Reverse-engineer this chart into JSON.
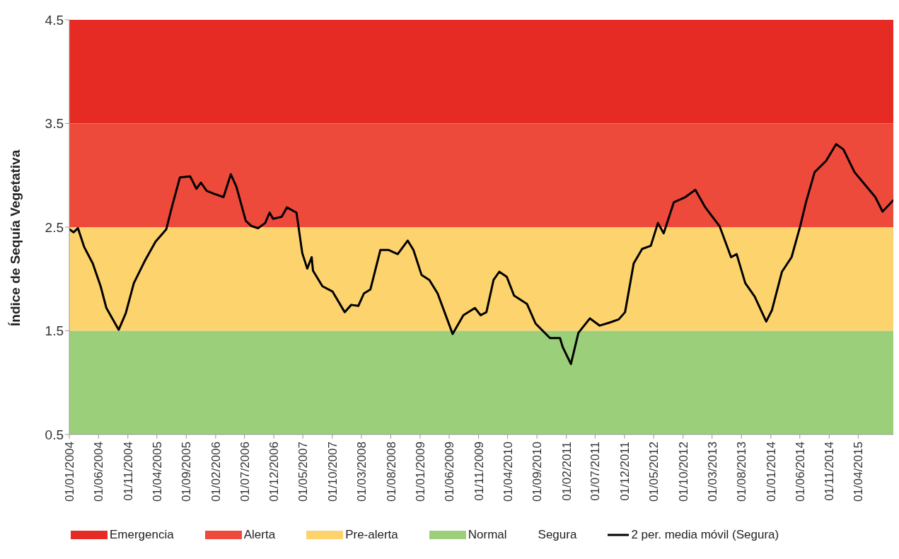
{
  "chart_data": {
    "type": "line",
    "ylabel": "Índice de Sequía Vegetativa",
    "ylim": [
      0.5,
      4.5
    ],
    "yticks": [
      0.5,
      1.5,
      2.5,
      3.5,
      4.5
    ],
    "xlim": [
      "2004-01-01",
      "2015-10-01"
    ],
    "xticks": [
      {
        "value": "2004-01-01",
        "label": "01/01/2004"
      },
      {
        "value": "2004-06-01",
        "label": "01/06/2004"
      },
      {
        "value": "2004-11-01",
        "label": "01/11/2004"
      },
      {
        "value": "2005-04-01",
        "label": "01/04/2005"
      },
      {
        "value": "2005-09-01",
        "label": "01/09/2005"
      },
      {
        "value": "2006-02-01",
        "label": "01/02/2006"
      },
      {
        "value": "2006-07-01",
        "label": "01/07/2006"
      },
      {
        "value": "2006-12-01",
        "label": "01/12/2006"
      },
      {
        "value": "2007-05-01",
        "label": "01/05/2007"
      },
      {
        "value": "2007-10-01",
        "label": "01/10/2007"
      },
      {
        "value": "2008-03-01",
        "label": "01/03/2008"
      },
      {
        "value": "2008-08-01",
        "label": "01/08/2008"
      },
      {
        "value": "2009-01-01",
        "label": "01/01/2009"
      },
      {
        "value": "2009-06-01",
        "label": "01/06/2009"
      },
      {
        "value": "2009-11-01",
        "label": "01/11/2009"
      },
      {
        "value": "2010-04-01",
        "label": "01/04/2010"
      },
      {
        "value": "2010-09-01",
        "label": "01/09/2010"
      },
      {
        "value": "2011-02-01",
        "label": "01/02/2011"
      },
      {
        "value": "2011-07-01",
        "label": "01/07/2011"
      },
      {
        "value": "2011-12-01",
        "label": "01/12/2011"
      },
      {
        "value": "2012-05-01",
        "label": "01/05/2012"
      },
      {
        "value": "2012-10-01",
        "label": "01/10/2012"
      },
      {
        "value": "2013-03-01",
        "label": "01/03/2013"
      },
      {
        "value": "2013-08-01",
        "label": "01/08/2013"
      },
      {
        "value": "2014-01-01",
        "label": "01/01/2014"
      },
      {
        "value": "2014-06-01",
        "label": "01/06/2014"
      },
      {
        "value": "2014-11-01",
        "label": "01/11/2014"
      },
      {
        "value": "2015-04-01",
        "label": "01/04/2015"
      }
    ],
    "bands": [
      {
        "axis": "y",
        "from": 3.5,
        "to": 4.5,
        "label": "Emergencia",
        "color": "#e52b23"
      },
      {
        "axis": "y",
        "from": 2.5,
        "to": 3.5,
        "label": "Alerta",
        "color": "#ee4a3c"
      },
      {
        "axis": "y",
        "from": 1.5,
        "to": 2.5,
        "label": "Pre-alerta",
        "color": "#fdd36e"
      },
      {
        "axis": "y",
        "from": 0.5,
        "to": 1.5,
        "label": "Normal",
        "color": "#9ccf7a"
      }
    ],
    "series": [
      {
        "name": "Segura"
      },
      {
        "name": "2 per. media móvil (Segura)",
        "color": "#000000",
        "x": [
          "2004-01-01",
          "2004-01-23",
          "2004-02-15",
          "2004-03-18",
          "2004-05-02",
          "2004-06-12",
          "2004-07-12",
          "2004-09-14",
          "2004-10-21",
          "2004-12-02",
          "2005-01-27",
          "2005-03-25",
          "2005-05-20",
          "2005-06-19",
          "2005-07-30",
          "2005-09-21",
          "2005-10-24",
          "2005-11-16",
          "2005-12-16",
          "2006-01-26",
          "2006-03-14",
          "2006-04-21",
          "2006-05-20",
          "2006-07-08",
          "2006-08-07",
          "2006-09-10",
          "2006-10-17",
          "2006-11-09",
          "2006-11-27",
          "2007-01-11",
          "2007-02-07",
          "2007-03-29",
          "2007-04-28",
          "2007-05-24",
          "2007-06-16",
          "2007-06-23",
          "2007-08-11",
          "2007-10-02",
          "2007-12-05",
          "2008-01-08",
          "2008-02-14",
          "2008-03-14",
          "2008-04-17",
          "2008-06-08",
          "2008-07-19",
          "2008-09-06",
          "2008-10-28",
          "2008-11-27",
          "2009-01-08",
          "2009-02-18",
          "2009-04-02",
          "2009-06-19",
          "2009-08-14",
          "2009-10-13",
          "2009-11-12",
          "2009-12-12",
          "2010-01-18",
          "2010-02-17",
          "2010-03-28",
          "2010-05-05",
          "2010-07-11",
          "2010-08-25",
          "2010-11-08",
          "2010-12-30",
          "2011-01-14",
          "2011-02-25",
          "2011-04-05",
          "2011-06-04",
          "2011-07-25",
          "2011-09-16",
          "2011-11-01",
          "2011-12-04",
          "2012-01-18",
          "2012-03-02",
          "2012-04-16",
          "2012-05-23",
          "2012-06-22",
          "2012-08-14",
          "2012-10-13",
          "2012-12-04",
          "2013-01-25",
          "2013-04-09",
          "2013-06-08",
          "2013-07-07",
          "2013-08-21",
          "2013-10-09",
          "2013-12-08",
          "2014-01-07",
          "2014-02-28",
          "2014-04-19",
          "2014-06-03",
          "2014-07-03",
          "2014-08-17",
          "2014-10-16",
          "2014-12-07",
          "2015-01-14",
          "2015-03-13",
          "2015-06-29",
          "2015-08-06",
          "2015-10-01"
        ],
        "values": [
          2.48,
          2.45,
          2.49,
          2.31,
          2.15,
          1.93,
          1.72,
          1.51,
          1.67,
          1.96,
          2.17,
          2.36,
          2.48,
          2.7,
          2.98,
          2.99,
          2.87,
          2.93,
          2.85,
          2.82,
          2.79,
          3.01,
          2.89,
          2.56,
          2.51,
          2.49,
          2.54,
          2.64,
          2.58,
          2.6,
          2.69,
          2.64,
          2.25,
          2.1,
          2.21,
          2.08,
          1.93,
          1.88,
          1.68,
          1.75,
          1.74,
          1.86,
          1.9,
          2.28,
          2.28,
          2.24,
          2.37,
          2.28,
          2.04,
          1.99,
          1.86,
          1.47,
          1.65,
          1.72,
          1.65,
          1.68,
          1.99,
          2.07,
          2.02,
          1.84,
          1.76,
          1.57,
          1.43,
          1.43,
          1.34,
          1.18,
          1.48,
          1.62,
          1.55,
          1.58,
          1.61,
          1.68,
          2.15,
          2.29,
          2.32,
          2.54,
          2.44,
          2.74,
          2.79,
          2.86,
          2.69,
          2.51,
          2.21,
          2.24,
          1.96,
          1.83,
          1.59,
          1.7,
          2.07,
          2.21,
          2.51,
          2.74,
          3.03,
          3.14,
          3.3,
          3.25,
          3.03,
          2.79,
          2.65,
          2.76
        ]
      }
    ],
    "grid": false,
    "legend": "bottom",
    "marker": "none",
    "line_style": "solid"
  }
}
